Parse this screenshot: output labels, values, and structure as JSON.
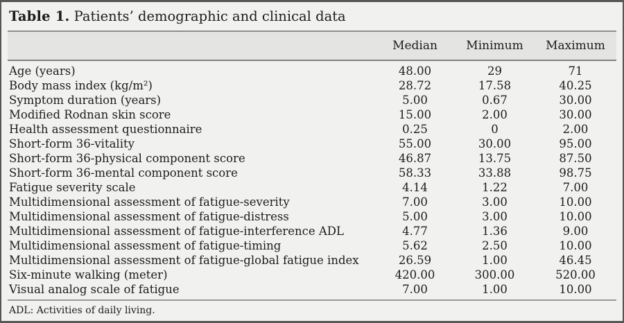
{
  "table": {
    "title_label": "Table 1.",
    "title_text": " Patients’ demographic and clinical data",
    "columns": [
      "Median",
      "Minimum",
      "Maximum"
    ],
    "rows": [
      {
        "label": "Age (years)",
        "median": "48.00",
        "min": "29",
        "max": "71"
      },
      {
        "label": "Body mass index (kg/m²)",
        "median": "28.72",
        "min": "17.58",
        "max": "40.25"
      },
      {
        "label": "Symptom duration (years)",
        "median": "5.00",
        "min": "0.67",
        "max": "30.00"
      },
      {
        "label": "Modified Rodnan skin score",
        "median": "15.00",
        "min": "2.00",
        "max": "30.00"
      },
      {
        "label": "Health assessment questionnaire",
        "median": "0.25",
        "min": "0",
        "max": "2.00"
      },
      {
        "label": "Short-form 36-vitality",
        "median": "55.00",
        "min": "30.00",
        "max": "95.00"
      },
      {
        "label": "Short-form 36-physical component score",
        "median": "46.87",
        "min": "13.75",
        "max": "87.50"
      },
      {
        "label": "Short-form 36-mental component score",
        "median": "58.33",
        "min": "33.88",
        "max": "98.75"
      },
      {
        "label": "Fatigue severity scale",
        "median": "4.14",
        "min": "1.22",
        "max": "7.00"
      },
      {
        "label": "Multidimensional assessment of fatigue-severity",
        "median": "7.00",
        "min": "3.00",
        "max": "10.00"
      },
      {
        "label": "Multidimensional assessment of fatigue-distress",
        "median": "5.00",
        "min": "3.00",
        "max": "10.00"
      },
      {
        "label": "Multidimensional assessment of fatigue-interference ADL",
        "median": "4.77",
        "min": "1.36",
        "max": "9.00"
      },
      {
        "label": "Multidimensional assessment of fatigue-timing",
        "median": "5.62",
        "min": "2.50",
        "max": "10.00"
      },
      {
        "label": "Multidimensional assessment of fatigue-global fatigue index",
        "median": "26.59",
        "min": "1.00",
        "max": "46.45"
      },
      {
        "label": "Six-minute walking (meter)",
        "median": "420.00",
        "min": "300.00",
        "max": "520.00"
      },
      {
        "label": "Visual analog scale of fatigue",
        "median": "7.00",
        "min": "1.00",
        "max": "10.00"
      }
    ],
    "footnote": "ADL: Activities of daily living.",
    "colors": {
      "background": "#f1f1ef",
      "header_band": "#e4e4e2",
      "rule": "#8d8d8d",
      "outer_border": "#565656",
      "text": "#1c1c1c"
    }
  }
}
